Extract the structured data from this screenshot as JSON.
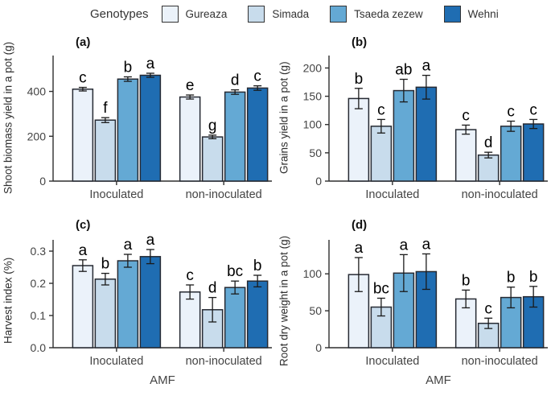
{
  "legend": {
    "title": "Genotypes",
    "items": [
      {
        "label": "Gureaza",
        "color": "#ebf2fa"
      },
      {
        "label": "Simada",
        "color": "#c8dcec"
      },
      {
        "label": "Tsaeda zezew",
        "color": "#64a9d4"
      },
      {
        "label": "Wehni",
        "color": "#1f6db2"
      }
    ]
  },
  "chart_data": [
    {
      "id": "a",
      "type": "bar",
      "panel_label": "(a)",
      "ylabel": "Shoot biomass yield in a pot (g)",
      "xlabel": "",
      "ylim": [
        0,
        560
      ],
      "yticks": [
        0,
        200,
        400
      ],
      "ytick_labels": [
        "0",
        "200",
        "400"
      ],
      "categories": [
        "Inoculated",
        "non-inoculated"
      ],
      "series": [
        {
          "name": "Gureaza",
          "values": [
            410,
            375
          ],
          "errors": [
            8,
            9
          ],
          "letters": [
            "c",
            "e"
          ]
        },
        {
          "name": "Simada",
          "values": [
            272,
            197
          ],
          "errors": [
            11,
            8
          ],
          "letters": [
            "f",
            "g"
          ]
        },
        {
          "name": "Tsaeda zezew",
          "values": [
            455,
            397
          ],
          "errors": [
            10,
            10
          ],
          "letters": [
            "b",
            "d"
          ]
        },
        {
          "name": "Wehni",
          "values": [
            472,
            415
          ],
          "errors": [
            9,
            10
          ],
          "letters": [
            "a",
            "c"
          ]
        }
      ]
    },
    {
      "id": "b",
      "type": "bar",
      "panel_label": "(b)",
      "ylabel": "Grains yield in a pot (g)",
      "xlabel": "",
      "ylim": [
        0,
        222
      ],
      "yticks": [
        0,
        50,
        100,
        150,
        200
      ],
      "ytick_labels": [
        "0",
        "50",
        "100",
        "150",
        "200"
      ],
      "categories": [
        "Inoculated",
        "non-inoculated"
      ],
      "series": [
        {
          "name": "Gureaza",
          "values": [
            146,
            91
          ],
          "errors": [
            18,
            8
          ],
          "letters": [
            "b",
            "c"
          ]
        },
        {
          "name": "Simada",
          "values": [
            97,
            46
          ],
          "errors": [
            12,
            5
          ],
          "letters": [
            "c",
            "d"
          ]
        },
        {
          "name": "Tsaeda zezew",
          "values": [
            160,
            97
          ],
          "errors": [
            20,
            9
          ],
          "letters": [
            "ab",
            "c"
          ]
        },
        {
          "name": "Wehni",
          "values": [
            166,
            101
          ],
          "errors": [
            21,
            8
          ],
          "letters": [
            "a",
            "c"
          ]
        }
      ]
    },
    {
      "id": "c",
      "type": "bar",
      "panel_label": "(c)",
      "ylabel": "Harvest index (%)",
      "xlabel": "AMF",
      "ylim": [
        0,
        0.335
      ],
      "yticks": [
        0,
        0.1,
        0.2,
        0.3
      ],
      "ytick_labels": [
        "0.0",
        "0.1",
        "0.2",
        "0.3"
      ],
      "categories": [
        "Inoculated",
        "non-inoculated"
      ],
      "series": [
        {
          "name": "Gureaza",
          "values": [
            0.255,
            0.173
          ],
          "errors": [
            0.018,
            0.022
          ],
          "letters": [
            "a",
            "c"
          ]
        },
        {
          "name": "Simada",
          "values": [
            0.213,
            0.118
          ],
          "errors": [
            0.018,
            0.038
          ],
          "letters": [
            "b",
            "d"
          ]
        },
        {
          "name": "Tsaeda zezew",
          "values": [
            0.27,
            0.187
          ],
          "errors": [
            0.02,
            0.02
          ],
          "letters": [
            "a",
            "bc"
          ]
        },
        {
          "name": "Wehni",
          "values": [
            0.283,
            0.207
          ],
          "errors": [
            0.022,
            0.018
          ],
          "letters": [
            "a",
            "b"
          ]
        }
      ]
    },
    {
      "id": "d",
      "type": "bar",
      "panel_label": "(d)",
      "ylabel": "Root dry weight in a pot (g)",
      "xlabel": "AMF",
      "ylim": [
        0,
        146
      ],
      "yticks": [
        0,
        50,
        100
      ],
      "ytick_labels": [
        "0",
        "50",
        "100"
      ],
      "categories": [
        "Inoculated",
        "non-inoculated"
      ],
      "series": [
        {
          "name": "Gureaza",
          "values": [
            99,
            66
          ],
          "errors": [
            23,
            12
          ],
          "letters": [
            "a",
            "b"
          ]
        },
        {
          "name": "Simada",
          "values": [
            55,
            33
          ],
          "errors": [
            12,
            7
          ],
          "letters": [
            "bc",
            "c"
          ]
        },
        {
          "name": "Tsaeda zezew",
          "values": [
            101,
            68
          ],
          "errors": [
            25,
            14
          ],
          "letters": [
            "a",
            "b"
          ]
        },
        {
          "name": "Wehni",
          "values": [
            103,
            69
          ],
          "errors": [
            24,
            14
          ],
          "letters": [
            "a",
            "b"
          ]
        }
      ]
    }
  ]
}
